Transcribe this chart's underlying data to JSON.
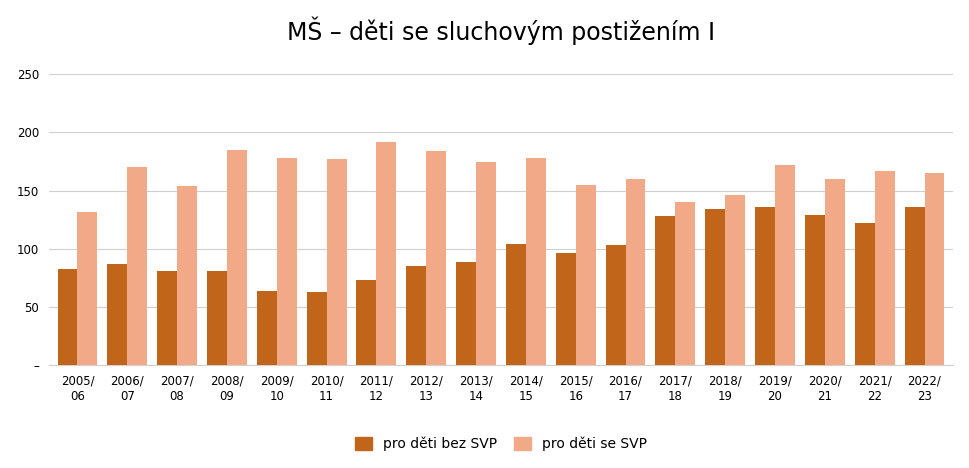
{
  "title": "MŠ – děti se sluchovým postižením I",
  "categories": [
    "2005/\n06",
    "2006/\n07",
    "2007/\n08",
    "2008/\n09",
    "2009/\n10",
    "2010/\n11",
    "2011/\n12",
    "2012/\n13",
    "2013/\n14",
    "2014/\n15",
    "2015/\n16",
    "2016/\n17",
    "2017/\n18",
    "2018/\n19",
    "2019/\n20",
    "2020/\n21",
    "2021/\n22",
    "2022/\n23"
  ],
  "dark_values": [
    83,
    87,
    81,
    81,
    64,
    63,
    73,
    85,
    89,
    104,
    96,
    103,
    128,
    134,
    136,
    129,
    122,
    136
  ],
  "light_values": [
    132,
    170,
    154,
    185,
    178,
    177,
    192,
    184,
    175,
    178,
    155,
    160,
    140,
    146,
    172,
    160,
    167,
    165
  ],
  "dark_color": "#C0651A",
  "light_color": "#F2A987",
  "legend_dark": "pro děti bez SVP",
  "legend_light": "pro děti se SVP",
  "ylim": [
    0,
    265
  ],
  "yticks": [
    0,
    50,
    100,
    150,
    200,
    250
  ],
  "background_color": "#ffffff",
  "grid_color": "#d0d0d0",
  "title_fontsize": 17,
  "tick_fontsize": 8.5,
  "legend_fontsize": 10,
  "bar_width": 0.4,
  "figure_facecolor": "#ffffff"
}
